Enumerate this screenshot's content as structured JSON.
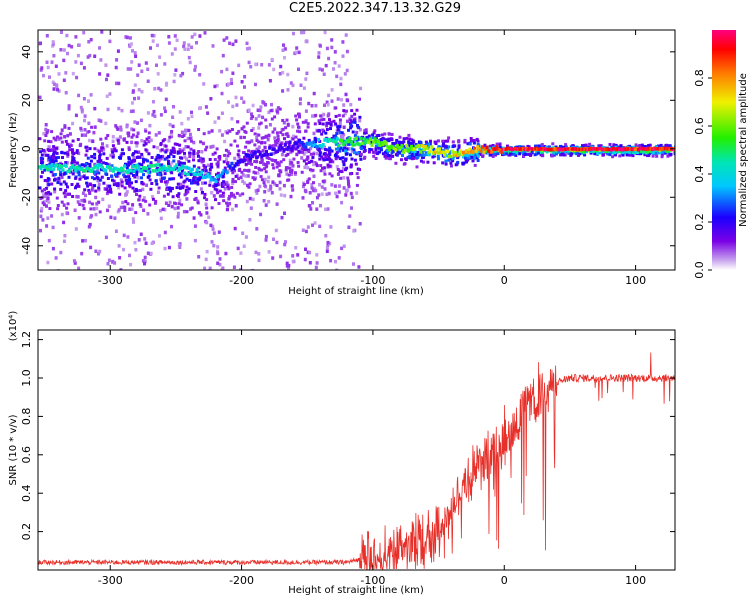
{
  "title": "C2E5.2022.347.13.32.G29",
  "chart_data": [
    {
      "type": "heatmap",
      "panel": "top",
      "xlabel": "Height of straight line (km)",
      "ylabel": "Frequency (Hz)",
      "xlim": [
        -355,
        130
      ],
      "ylim": [
        -50,
        49
      ],
      "xticks": [
        -300,
        -200,
        -100,
        0,
        100
      ],
      "yticks": [
        -40,
        -20,
        0,
        20,
        40
      ],
      "colorbar": {
        "label": "Normalized spectral amplitude",
        "range": [
          0.0,
          1.0
        ],
        "ticks": [
          0.0,
          0.2,
          0.4,
          0.6,
          0.8
        ],
        "colormap": "rainbow (magenta-blue-cyan-green-yellow-red)"
      },
      "ridge": {
        "height_km": [
          -355,
          -300,
          -250,
          -220,
          -200,
          -160,
          -120,
          -100,
          -80,
          -60,
          -40,
          -20,
          0,
          50,
          100,
          130
        ],
        "frequency_hz": [
          -8,
          -8,
          -8,
          -12,
          -4,
          2,
          3,
          3,
          0,
          0,
          -2,
          0,
          0,
          0,
          0,
          0
        ],
        "normalized_amplitude": [
          0.45,
          0.45,
          0.45,
          0.35,
          0.2,
          0.2,
          0.55,
          0.6,
          0.6,
          0.7,
          0.7,
          0.85,
          0.95,
          0.95,
          0.95,
          0.95
        ]
      },
      "grid": false
    },
    {
      "type": "line",
      "panel": "bottom",
      "xlabel": "Height of straight line (km)",
      "ylabel": "SNR (10 * v/v)",
      "y_scale_note": "(x10⁴)",
      "xlim": [
        -355,
        130
      ],
      "ylim": [
        0.0,
        1.25
      ],
      "xticks": [
        -300,
        -200,
        -100,
        0,
        100
      ],
      "yticks": [
        0.2,
        0.4,
        0.6,
        0.8,
        1.0,
        1.2
      ],
      "color": "#e8302a",
      "series": [
        {
          "x": [
            -355,
            -300,
            -250,
            -200,
            -150,
            -120,
            -100,
            -80,
            -60,
            -50,
            -40,
            -30,
            -20,
            -10,
            0,
            10,
            20,
            30,
            40,
            50,
            60,
            80,
            100,
            120,
            130
          ],
          "y": [
            0.04,
            0.04,
            0.04,
            0.04,
            0.04,
            0.04,
            0.07,
            0.12,
            0.18,
            0.24,
            0.32,
            0.42,
            0.55,
            0.62,
            0.7,
            0.78,
            0.87,
            0.94,
            0.98,
            1.0,
            1.0,
            1.0,
            1.0,
            1.0,
            1.0
          ]
        }
      ],
      "grid": false
    }
  ]
}
